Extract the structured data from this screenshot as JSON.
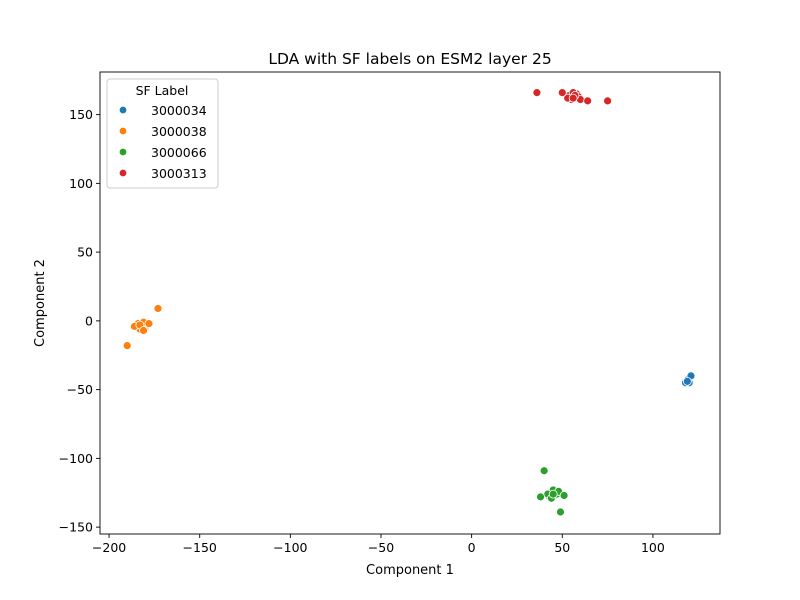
{
  "chart_data": {
    "type": "scatter",
    "title": "LDA with SF labels on ESM2 layer 25",
    "xlabel": "Component 1",
    "ylabel": "Component 2",
    "xlim": [
      -205,
      137
    ],
    "ylim": [
      -155,
      181
    ],
    "xticks": [
      -200,
      -150,
      -100,
      -50,
      0,
      50,
      100
    ],
    "yticks": [
      -150,
      -100,
      -50,
      0,
      50,
      100,
      150
    ],
    "grid": false,
    "legend": {
      "title": "SF Label",
      "position": "top-left"
    },
    "series": [
      {
        "name": "3000034",
        "color": "#1f77b4",
        "points": [
          [
            118,
            -44
          ],
          [
            120,
            -45
          ],
          [
            119,
            -43
          ],
          [
            118,
            -45
          ],
          [
            121,
            -40
          ],
          [
            119,
            -44
          ]
        ]
      },
      {
        "name": "3000038",
        "color": "#ff7f0e",
        "points": [
          [
            -182,
            -4
          ],
          [
            -184,
            -2
          ],
          [
            -180,
            -5
          ],
          [
            -183,
            -6
          ],
          [
            -179,
            -3
          ],
          [
            -181,
            -1
          ],
          [
            -186,
            -4
          ],
          [
            -178,
            -2
          ],
          [
            -183,
            -3
          ],
          [
            -181,
            -7
          ],
          [
            -173,
            9
          ],
          [
            -190,
            -18
          ]
        ]
      },
      {
        "name": "3000066",
        "color": "#2ca02c",
        "points": [
          [
            44,
            -125
          ],
          [
            46,
            -127
          ],
          [
            43,
            -128
          ],
          [
            45,
            -123
          ],
          [
            47,
            -126
          ],
          [
            42,
            -126
          ],
          [
            44,
            -129
          ],
          [
            48,
            -124
          ],
          [
            40,
            -109
          ],
          [
            51,
            -127
          ],
          [
            38,
            -128
          ],
          [
            49,
            -139
          ],
          [
            45,
            -126
          ]
        ]
      },
      {
        "name": "3000313",
        "color": "#d62728",
        "points": [
          [
            56,
            163
          ],
          [
            58,
            165
          ],
          [
            55,
            161
          ],
          [
            57,
            162
          ],
          [
            54,
            164
          ],
          [
            59,
            163
          ],
          [
            56,
            166
          ],
          [
            53,
            162
          ],
          [
            60,
            161
          ],
          [
            57,
            164
          ],
          [
            36,
            166
          ],
          [
            50,
            166
          ],
          [
            64,
            160
          ],
          [
            75,
            160
          ],
          [
            56,
            162
          ]
        ]
      }
    ]
  }
}
